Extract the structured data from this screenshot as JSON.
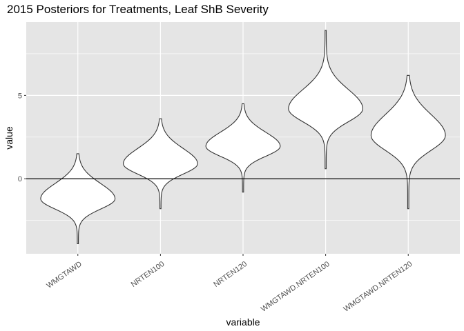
{
  "chart_data": {
    "type": "violin",
    "title": "2015 Posteriors for Treatments, Leaf ShB Severity",
    "xlabel": "variable",
    "ylabel": "value",
    "ylim": [
      -4.5,
      9.4
    ],
    "yticks": [
      0,
      5
    ],
    "hline": 0,
    "grid": true,
    "background": "#e5e5e5",
    "grid_color": "#ffffff",
    "line_color": "#333333",
    "fill_color": "#ffffff",
    "categories": [
      "WMGTAWD",
      "NRTEN100",
      "NRTEN120",
      "WMGTAWD.NRTEN100",
      "WMGTAWD.NRTEN120"
    ],
    "series": [
      {
        "category": "WMGTAWD",
        "min": -3.9,
        "max": 1.5,
        "mode": -1.2,
        "spread": 0.62,
        "skew": 0.3
      },
      {
        "category": "NRTEN100",
        "min": -1.8,
        "max": 3.6,
        "mode": 0.9,
        "spread": 0.62,
        "skew": 0.3
      },
      {
        "category": "NRTEN120",
        "min": -0.8,
        "max": 4.5,
        "mode": 1.95,
        "spread": 0.6,
        "skew": 0.25
      },
      {
        "category": "WMGTAWD.NRTEN100",
        "min": 0.6,
        "max": 8.9,
        "mode": 4.2,
        "spread": 0.78,
        "skew": 0.3
      },
      {
        "category": "WMGTAWD.NRTEN120",
        "min": -1.8,
        "max": 6.2,
        "mode": 2.6,
        "spread": 0.9,
        "skew": 0.25
      }
    ]
  }
}
